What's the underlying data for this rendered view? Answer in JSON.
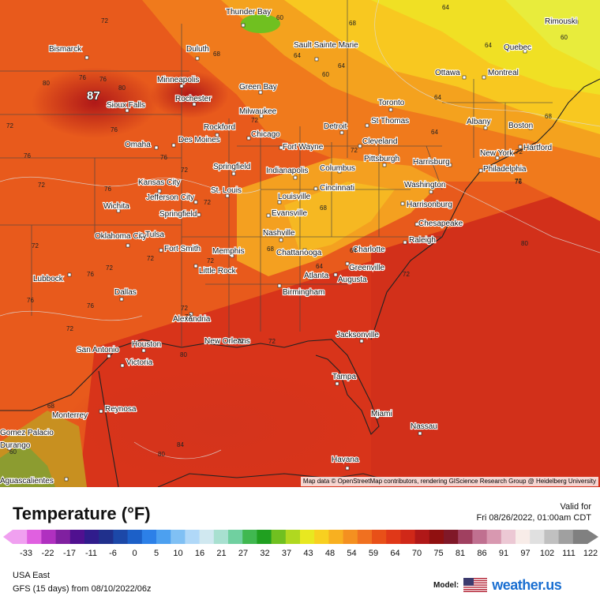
{
  "map": {
    "region_label": "USA East",
    "max_marker": "87",
    "attribution": "Map data © OpenStreetMap contributors, rendering GIScience Research Group @ Heidelberg University",
    "cities": [
      {
        "name": "Thunder Bay"
      },
      {
        "name": "Sault Sainte Marie"
      },
      {
        "name": "Bismarck"
      },
      {
        "name": "Duluth"
      },
      {
        "name": "Minneapolis"
      },
      {
        "name": "Rochester"
      },
      {
        "name": "Green Bay"
      },
      {
        "name": "Milwaukee"
      },
      {
        "name": "Sioux Falls"
      },
      {
        "name": "Rockford"
      },
      {
        "name": "Chicago"
      },
      {
        "name": "Detroit"
      },
      {
        "name": "Toronto"
      },
      {
        "name": "Ottawa"
      },
      {
        "name": "Montreal"
      },
      {
        "name": "Quebec"
      },
      {
        "name": "Rimouski"
      },
      {
        "name": "St Thomas"
      },
      {
        "name": "Albany"
      },
      {
        "name": "Boston"
      },
      {
        "name": "Omaha"
      },
      {
        "name": "Des Moines"
      },
      {
        "name": "Fort Wayne"
      },
      {
        "name": "Cleveland"
      },
      {
        "name": "Pittsburgh"
      },
      {
        "name": "Harrisburg"
      },
      {
        "name": "New York"
      },
      {
        "name": "Hartford"
      },
      {
        "name": "Philadelphia"
      },
      {
        "name": "Springfield"
      },
      {
        "name": "Indianapolis"
      },
      {
        "name": "Columbus"
      },
      {
        "name": "Kansas City"
      },
      {
        "name": "Cincinnati"
      },
      {
        "name": "Washington"
      },
      {
        "name": "St. Louis"
      },
      {
        "name": "Jefferson City"
      },
      {
        "name": "Louisville"
      },
      {
        "name": "Wichita"
      },
      {
        "name": "Evansville"
      },
      {
        "name": "Harrisonburg"
      },
      {
        "name": "Springfield"
      },
      {
        "name": "Chesapeake"
      },
      {
        "name": "Nashville"
      },
      {
        "name": "Oklahoma City"
      },
      {
        "name": "Tulsa"
      },
      {
        "name": "Raleigh"
      },
      {
        "name": "Fort Smith"
      },
      {
        "name": "Memphis"
      },
      {
        "name": "Chattanooga"
      },
      {
        "name": "Charlotte"
      },
      {
        "name": "Little Rock"
      },
      {
        "name": "Greenville"
      },
      {
        "name": "Atlanta"
      },
      {
        "name": "Lubbock"
      },
      {
        "name": "Augusta"
      },
      {
        "name": "Birmingham"
      },
      {
        "name": "Dallas"
      },
      {
        "name": "Alexandria"
      },
      {
        "name": "Jacksonville"
      },
      {
        "name": "San Antonio"
      },
      {
        "name": "Houston"
      },
      {
        "name": "New Orleans"
      },
      {
        "name": "Victoria"
      },
      {
        "name": "Tampa"
      },
      {
        "name": "Monterrey"
      },
      {
        "name": "Reynosa"
      },
      {
        "name": "Miami"
      },
      {
        "name": "Nassau"
      },
      {
        "name": "Gomez Palacio"
      },
      {
        "name": "Durango"
      },
      {
        "name": "Havana"
      },
      {
        "name": "Aguascalientes"
      }
    ],
    "iso_labels": [
      "72",
      "60",
      "68",
      "64",
      "64",
      "60",
      "64",
      "64",
      "60",
      "68",
      "80",
      "76",
      "80",
      "76",
      "76",
      "72",
      "72",
      "72",
      "72",
      "76",
      "72",
      "76",
      "76",
      "72",
      "68",
      "64",
      "72",
      "64",
      "68",
      "76",
      "72",
      "64",
      "72",
      "68",
      "64",
      "72",
      "72",
      "76",
      "72",
      "72",
      "80",
      "72",
      "76",
      "72",
      "76",
      "84",
      "80",
      "72",
      "68",
      "72",
      "72",
      "80",
      "60",
      "72",
      "76",
      "72",
      "64",
      "80",
      "72",
      "72",
      "76",
      "72",
      "76"
    ]
  },
  "legend": {
    "title": "Temperature (°F)",
    "valid_line1": "Valid for",
    "valid_line2": "Fri 08/26/2022, 01:00am CDT",
    "ticks": [
      "-33",
      "-22",
      "-17",
      "-11",
      "-6",
      "0",
      "5",
      "10",
      "16",
      "21",
      "27",
      "32",
      "37",
      "43",
      "48",
      "54",
      "59",
      "64",
      "70",
      "75",
      "81",
      "86",
      "91",
      "97",
      "102",
      "111",
      "122"
    ],
    "colors": [
      "#f0a0f0",
      "#e060e0",
      "#b030c0",
      "#8020a0",
      "#501090",
      "#301c8c",
      "#20308c",
      "#1c48a8",
      "#1c60c8",
      "#2c80e8",
      "#4ca0f0",
      "#80c0f4",
      "#b0d8f8",
      "#d0e8f0",
      "#a8e0d0",
      "#70d0a0",
      "#40b850",
      "#20a020",
      "#70c020",
      "#b0d820",
      "#e8e820",
      "#f8d020",
      "#f8b020",
      "#f49020",
      "#f07020",
      "#e85018",
      "#e03818",
      "#d02818",
      "#b01818",
      "#901010",
      "#801828",
      "#a04060",
      "#c07090",
      "#d898b0",
      "#ecc8d4",
      "#f8ece8",
      "#e0e0e0",
      "#c0c0c0",
      "#a0a0a0",
      "#808080"
    ]
  },
  "footer": {
    "region": "USA East",
    "model_run": "GFS (15 days) from  08/10/2022/06z",
    "model_label": "Model:",
    "brand": "weather.us",
    "flag_icon": "us-flag-icon"
  }
}
